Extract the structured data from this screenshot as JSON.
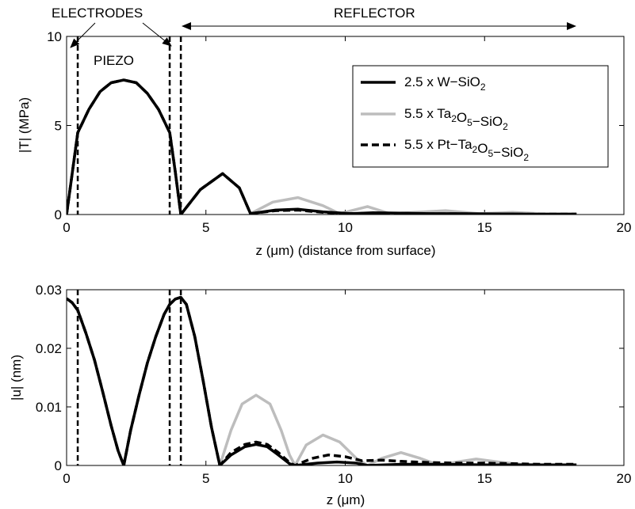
{
  "annotations": {
    "electrodes": "ELECTRODES",
    "reflector": "REFLECTOR",
    "piezo": "PIEZO"
  },
  "legend": {
    "items": [
      {
        "parts": [
          [
            "2.5 x W",
            "n"
          ],
          [
            "−SiO",
            "n"
          ],
          [
            "2",
            "sub"
          ]
        ],
        "color": "#000000",
        "style": "solid"
      },
      {
        "parts": [
          [
            "5.5 x Ta",
            "n"
          ],
          [
            "2",
            "sub"
          ],
          [
            "O",
            "n"
          ],
          [
            "5",
            "sub"
          ],
          [
            "−SiO",
            "n"
          ],
          [
            "2",
            "sub"
          ]
        ],
        "color": "#bdbdbd",
        "style": "solid"
      },
      {
        "parts": [
          [
            "5.5 x Pt−Ta",
            "n"
          ],
          [
            "2",
            "sub"
          ],
          [
            "O",
            "n"
          ],
          [
            "5",
            "sub"
          ],
          [
            "−SiO",
            "n"
          ],
          [
            "2",
            "sub"
          ]
        ],
        "color": "#000000",
        "style": "dashed"
      }
    ]
  },
  "chart_data": [
    {
      "type": "line",
      "xlabel": "z (μm) (distance from surface)",
      "ylabel": "|T| (MPa)",
      "xlim": [
        0,
        20
      ],
      "ylim": [
        0,
        10
      ],
      "xticks": [
        0,
        5,
        10,
        15,
        20
      ],
      "yticks": [
        0,
        5,
        10
      ],
      "vlines": [
        0.4,
        3.7,
        4.1
      ],
      "series": [
        {
          "name": "2.5 x W−SiO2",
          "color": "#000000",
          "style": "solid",
          "x": [
            0,
            0.4,
            0.8,
            1.2,
            1.6,
            2.05,
            2.5,
            2.9,
            3.3,
            3.7,
            3.9,
            4.1,
            4.8,
            5.6,
            6.2,
            6.6,
            7.5,
            8.3,
            9.2,
            10.2,
            11,
            12,
            13,
            14,
            15,
            16,
            17,
            18.3
          ],
          "y": [
            0,
            4.6,
            5.9,
            6.9,
            7.4,
            7.55,
            7.4,
            6.8,
            5.9,
            4.6,
            2.4,
            0,
            1.4,
            2.3,
            1.5,
            0.05,
            0.25,
            0.3,
            0.15,
            0.05,
            0.1,
            0.08,
            0.05,
            0.05,
            0.04,
            0.03,
            0.02,
            0.02
          ]
        },
        {
          "name": "5.5 x Ta2O5−SiO2",
          "color": "#bdbdbd",
          "style": "solid",
          "x": [
            0,
            0.4,
            0.8,
            1.2,
            1.6,
            2.05,
            2.5,
            2.9,
            3.3,
            3.7,
            3.9,
            4.1,
            4.8,
            5.6,
            6.2,
            6.6,
            7.4,
            8.3,
            9.2,
            9.8,
            10.8,
            11.6,
            12.5,
            13.6,
            14.8,
            16,
            17,
            18.3
          ],
          "y": [
            0,
            4.6,
            5.9,
            6.9,
            7.4,
            7.55,
            7.4,
            6.8,
            5.9,
            4.6,
            2.4,
            0,
            1.4,
            2.3,
            1.5,
            0.05,
            0.7,
            0.95,
            0.5,
            0.05,
            0.45,
            0.05,
            0.12,
            0.22,
            0.05,
            0.12,
            0.05,
            0.05
          ]
        },
        {
          "name": "5.5 x Pt−Ta2O5−SiO2",
          "color": "#000000",
          "style": "dashed",
          "x": [
            0,
            0.4,
            0.8,
            1.2,
            1.6,
            2.05,
            2.5,
            2.9,
            3.3,
            3.7,
            3.9,
            4.1,
            4.8,
            5.6,
            6.2,
            6.6,
            7.5,
            8.3,
            9.2,
            10.2,
            11,
            12,
            13,
            14,
            15,
            16,
            17,
            18.3
          ],
          "y": [
            0,
            4.6,
            5.9,
            6.9,
            7.4,
            7.55,
            7.4,
            6.8,
            5.9,
            4.6,
            2.4,
            0,
            1.4,
            2.3,
            1.5,
            0.05,
            0.22,
            0.25,
            0.12,
            0.05,
            0.08,
            0.06,
            0.04,
            0.04,
            0.03,
            0.02,
            0.02,
            0.02
          ]
        }
      ]
    },
    {
      "type": "line",
      "xlabel": "z (μm)",
      "ylabel": "|u| (nm)",
      "xlim": [
        0,
        20
      ],
      "ylim": [
        0,
        0.03
      ],
      "xticks": [
        0,
        5,
        10,
        15,
        20
      ],
      "yticks": [
        0,
        0.01,
        0.02,
        0.03
      ],
      "vlines": [
        0.4,
        3.7,
        4.1
      ],
      "series": [
        {
          "name": "2.5 x W−SiO2",
          "color": "#000000",
          "style": "solid",
          "x": [
            0,
            0.2,
            0.4,
            0.7,
            1.0,
            1.3,
            1.6,
            1.85,
            2.05,
            2.3,
            2.6,
            2.9,
            3.2,
            3.5,
            3.7,
            3.9,
            4.1,
            4.3,
            4.6,
            4.9,
            5.2,
            5.5,
            5.9,
            6.4,
            6.8,
            7.2,
            7.6,
            8.0,
            8.2,
            9.0,
            9.7,
            10.4,
            10.8,
            12,
            13.5,
            15,
            16.5,
            18.3
          ],
          "y": [
            0.0285,
            0.0278,
            0.0265,
            0.0225,
            0.018,
            0.0125,
            0.0068,
            0.0025,
            0,
            0.006,
            0.012,
            0.0175,
            0.022,
            0.0258,
            0.0275,
            0.0284,
            0.0287,
            0.0275,
            0.022,
            0.0145,
            0.0065,
            0,
            0.0018,
            0.0032,
            0.0036,
            0.0032,
            0.0018,
            0.0003,
            0,
            0.0004,
            0.0006,
            0.0004,
            0,
            0.0002,
            0.0002,
            0.0001,
            0.0001,
            0.0001
          ]
        },
        {
          "name": "5.5 x Ta2O5−SiO2",
          "color": "#bdbdbd",
          "style": "solid",
          "x": [
            0,
            0.2,
            0.4,
            0.7,
            1.0,
            1.3,
            1.6,
            1.85,
            2.05,
            2.3,
            2.6,
            2.9,
            3.2,
            3.5,
            3.7,
            3.9,
            4.1,
            4.3,
            4.6,
            4.9,
            5.2,
            5.5,
            5.9,
            6.3,
            6.8,
            7.3,
            7.7,
            8.0,
            8.2,
            8.6,
            9.2,
            9.8,
            10.4,
            10.8,
            11.3,
            12.0,
            12.7,
            13.4,
            14.0,
            14.7,
            15.5,
            16.3,
            17.0,
            18.3
          ],
          "y": [
            0.0285,
            0.0278,
            0.0265,
            0.0225,
            0.018,
            0.0125,
            0.0068,
            0.0025,
            0,
            0.006,
            0.012,
            0.0175,
            0.022,
            0.0258,
            0.0275,
            0.0284,
            0.0287,
            0.0275,
            0.022,
            0.0145,
            0.0065,
            0,
            0.006,
            0.0105,
            0.012,
            0.0105,
            0.006,
            0.0018,
            0,
            0.0035,
            0.0052,
            0.004,
            0.0012,
            0,
            0.0012,
            0.0022,
            0.0012,
            0,
            0.0006,
            0.0011,
            0.0006,
            0.0002,
            0.0001,
            0.0001
          ]
        },
        {
          "name": "5.5 x Pt−Ta2O5−SiO2",
          "color": "#000000",
          "style": "dashed",
          "x": [
            0,
            0.2,
            0.4,
            0.7,
            1.0,
            1.3,
            1.6,
            1.85,
            2.05,
            2.3,
            2.6,
            2.9,
            3.2,
            3.5,
            3.7,
            3.9,
            4.1,
            4.3,
            4.6,
            4.9,
            5.2,
            5.5,
            5.9,
            6.4,
            6.8,
            7.2,
            7.6,
            8.0,
            8.2,
            8.8,
            9.4,
            10.0,
            10.6,
            11.3,
            12.0,
            13.0,
            14.0,
            15.0,
            16.0,
            17.0,
            18.3
          ],
          "y": [
            0.0285,
            0.0278,
            0.0265,
            0.0225,
            0.018,
            0.0125,
            0.0068,
            0.0025,
            0,
            0.006,
            0.012,
            0.0175,
            0.022,
            0.0258,
            0.0275,
            0.0284,
            0.0287,
            0.0275,
            0.022,
            0.0145,
            0.0065,
            0,
            0.0022,
            0.0036,
            0.004,
            0.0036,
            0.0022,
            0.0005,
            0,
            0.0012,
            0.0018,
            0.0015,
            0.0008,
            0.0009,
            0.0007,
            0.0005,
            0.0004,
            0.0004,
            0.0003,
            0.0002,
            0.0002
          ]
        }
      ]
    }
  ]
}
